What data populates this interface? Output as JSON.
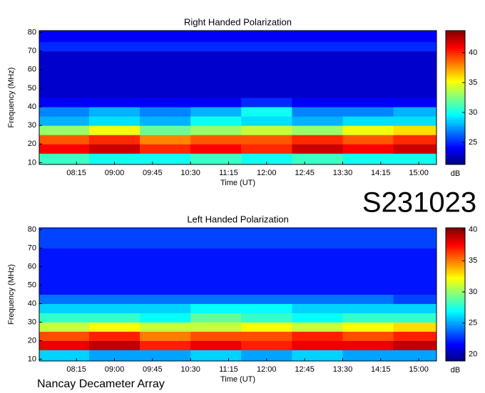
{
  "page": {
    "code": "S231023",
    "footer": "Nancay Decameter Array"
  },
  "chart_data": [
    {
      "type": "heatmap",
      "title": "Right Handed Polarization",
      "xlabel": "Time (UT)",
      "ylabel": "Frequency (MHz)",
      "colorbar_label": "dB",
      "colormap": "jet",
      "xbins": [
        451,
        510,
        570,
        630,
        690,
        750,
        810,
        870,
        921
      ],
      "ybins": [
        9,
        15,
        20,
        25,
        30,
        35,
        40,
        45,
        50,
        55,
        60,
        65,
        70,
        75,
        81
      ],
      "z": [
        [
          31,
          30,
          30,
          31,
          30,
          31,
          30,
          30
        ],
        [
          41,
          42,
          40,
          41,
          40,
          42,
          41,
          42
        ],
        [
          39,
          40,
          38,
          39,
          39,
          40,
          39,
          40
        ],
        [
          33,
          35,
          32,
          33,
          34,
          33,
          35,
          36
        ],
        [
          28,
          29,
          28,
          30,
          29,
          28,
          29,
          29
        ],
        [
          27,
          28,
          27,
          28,
          30,
          27,
          27,
          28
        ],
        [
          24,
          24,
          24,
          24,
          25,
          24,
          24,
          24
        ],
        [
          23,
          23,
          23,
          23,
          23,
          23,
          23,
          23
        ],
        [
          23,
          23,
          23,
          23,
          23,
          23,
          23,
          23
        ],
        [
          23,
          23,
          23,
          23,
          23,
          23,
          23,
          23
        ],
        [
          23,
          23,
          23,
          23,
          23,
          23,
          23,
          23
        ],
        [
          23,
          23,
          23,
          23,
          23,
          23,
          23,
          23
        ],
        [
          25,
          25,
          25,
          25,
          25,
          25,
          25,
          25
        ],
        [
          24,
          24,
          24,
          24,
          24,
          24,
          24,
          24
        ]
      ],
      "xlim": [
        451,
        921
      ],
      "ylim": [
        9,
        81
      ],
      "xticks": [
        {
          "value": 495,
          "label": "08:15"
        },
        {
          "value": 540,
          "label": "09:00"
        },
        {
          "value": 585,
          "label": "09:45"
        },
        {
          "value": 630,
          "label": "10:30"
        },
        {
          "value": 675,
          "label": "11:15"
        },
        {
          "value": 720,
          "label": "12:00"
        },
        {
          "value": 765,
          "label": "12:45"
        },
        {
          "value": 810,
          "label": "13:30"
        },
        {
          "value": 855,
          "label": "14:15"
        },
        {
          "value": 900,
          "label": "15:00"
        }
      ],
      "yticks": [
        10,
        20,
        30,
        40,
        50,
        60,
        70,
        80
      ],
      "clim": [
        21.3,
        43.7
      ],
      "cticks": [
        25,
        30,
        35,
        40
      ]
    },
    {
      "type": "heatmap",
      "title": "Left Handed Polarization",
      "xlabel": "Time (UT)",
      "ylabel": "Frequency (MHz)",
      "colorbar_label": "dB",
      "colormap": "jet",
      "xbins": [
        451,
        510,
        570,
        630,
        690,
        750,
        810,
        870,
        921
      ],
      "ybins": [
        9,
        15,
        20,
        25,
        30,
        35,
        40,
        45,
        50,
        55,
        60,
        65,
        70,
        75,
        81
      ],
      "z": [
        [
          26,
          25,
          25,
          26,
          25,
          26,
          25,
          25
        ],
        [
          38,
          39,
          37,
          38,
          37,
          38,
          38,
          39
        ],
        [
          36,
          37,
          35,
          36,
          36,
          37,
          36,
          37
        ],
        [
          31,
          32,
          31,
          31,
          32,
          31,
          32,
          33
        ],
        [
          28,
          28,
          27,
          29,
          28,
          27,
          28,
          28
        ],
        [
          26,
          26,
          26,
          27,
          27,
          26,
          26,
          26
        ],
        [
          24,
          24,
          24,
          24,
          24,
          24,
          24,
          23
        ],
        [
          22,
          22,
          22,
          22,
          22,
          22,
          22,
          22
        ],
        [
          22,
          22,
          22,
          22,
          22,
          22,
          22,
          22
        ],
        [
          22,
          22,
          22,
          22,
          22,
          22,
          22,
          22
        ],
        [
          22,
          22,
          22,
          22,
          22,
          22,
          22,
          22
        ],
        [
          22,
          22,
          22,
          22,
          22,
          22,
          22,
          22
        ],
        [
          23,
          23,
          23,
          23,
          23,
          23,
          23,
          23
        ],
        [
          23,
          23,
          23,
          23,
          23,
          23,
          23,
          23
        ]
      ],
      "xlim": [
        451,
        921
      ],
      "ylim": [
        9,
        81
      ],
      "xticks": [
        {
          "value": 495,
          "label": "08:15"
        },
        {
          "value": 540,
          "label": "09:00"
        },
        {
          "value": 585,
          "label": "09:45"
        },
        {
          "value": 630,
          "label": "10:30"
        },
        {
          "value": 675,
          "label": "11:15"
        },
        {
          "value": 720,
          "label": "12:00"
        },
        {
          "value": 765,
          "label": "12:45"
        },
        {
          "value": 810,
          "label": "13:30"
        },
        {
          "value": 855,
          "label": "14:15"
        },
        {
          "value": 900,
          "label": "15:00"
        }
      ],
      "yticks": [
        10,
        20,
        30,
        40,
        50,
        60,
        70,
        80
      ],
      "clim": [
        18.9,
        40.3
      ],
      "cticks": [
        20,
        25,
        30,
        35,
        40
      ]
    }
  ]
}
